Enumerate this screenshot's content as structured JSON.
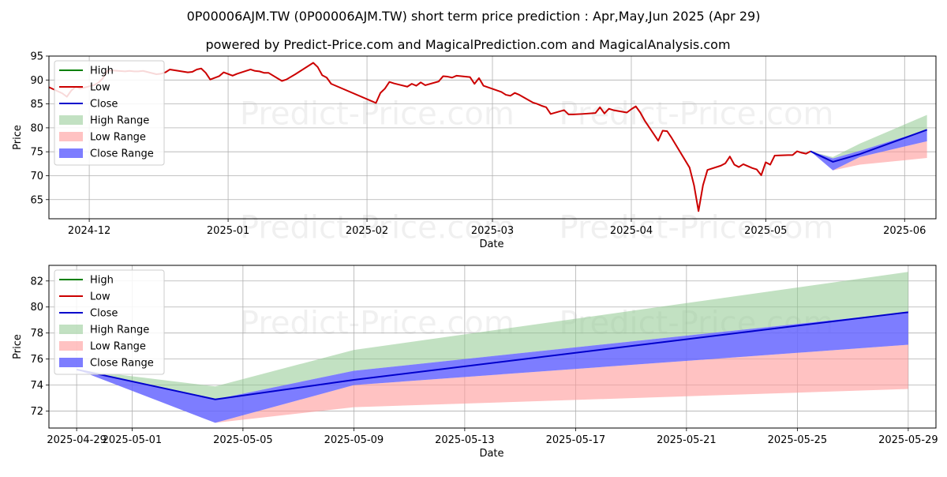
{
  "title": "0P00006AJM.TW (0P00006AJM.TW) short term price prediction : Apr,May,Jun 2025 (Apr 29)",
  "subtitle": "powered by Predict-Price.com and MagicalPrediction.com and MagicalAnalysis.com",
  "watermark": "Predict-Price.com",
  "colors": {
    "high": "#008000",
    "low": "#cc0000",
    "close": "#0000cc",
    "high_range": "#8fc98f",
    "low_range": "#ff9999",
    "close_range": "#6666ff"
  },
  "chart_data": [
    {
      "type": "line",
      "xlabel": "Date",
      "ylabel": "Price",
      "ylim": [
        61,
        95
      ],
      "yticks": [
        65,
        70,
        75,
        80,
        85,
        90,
        95
      ],
      "xlim": [
        "2024-11-22",
        "2025-06-08"
      ],
      "xticks": [
        "2024-12-01",
        "2025-01-01",
        "2025-02-01",
        "2025-03-01",
        "2025-04-01",
        "2025-05-01",
        "2025-06-01"
      ],
      "xtick_labels": [
        "2024-12",
        "2025-01",
        "2025-02",
        "2025-03",
        "2025-04",
        "2025-05",
        "2025-06"
      ],
      "grid": true,
      "legend_position": "top-left",
      "legend": [
        "High",
        "Low",
        "Close",
        "High Range",
        "Low Range",
        "Close Range"
      ],
      "history": [
        [
          "2024-11-22",
          88.5
        ],
        [
          "2024-11-25",
          87.2
        ],
        [
          "2024-11-26",
          86.5
        ],
        [
          "2024-11-27",
          87.8
        ],
        [
          "2024-11-28",
          88.6
        ],
        [
          "2024-11-29",
          88.2
        ],
        [
          "2024-12-02",
          88.9
        ],
        [
          "2024-12-03",
          89.4
        ],
        [
          "2024-12-04",
          90.3
        ],
        [
          "2024-12-05",
          91.9
        ],
        [
          "2024-12-06",
          92.0
        ],
        [
          "2024-12-09",
          91.8
        ],
        [
          "2024-12-10",
          91.9
        ],
        [
          "2024-12-11",
          91.8
        ],
        [
          "2024-12-12",
          91.8
        ],
        [
          "2024-12-13",
          91.9
        ],
        [
          "2024-12-16",
          91.2
        ],
        [
          "2024-12-17",
          91.3
        ],
        [
          "2024-12-18",
          91.6
        ],
        [
          "2024-12-19",
          92.2
        ],
        [
          "2024-12-23",
          91.6
        ],
        [
          "2024-12-24",
          91.7
        ],
        [
          "2024-12-25",
          92.2
        ],
        [
          "2024-12-26",
          92.4
        ],
        [
          "2024-12-27",
          91.5
        ],
        [
          "2024-12-28",
          90.1
        ],
        [
          "2024-12-30",
          90.8
        ],
        [
          "2024-12-31",
          91.6
        ],
        [
          "2025-01-02",
          90.9
        ],
        [
          "2025-01-03",
          91.3
        ],
        [
          "2025-01-06",
          92.2
        ],
        [
          "2025-01-07",
          91.9
        ],
        [
          "2025-01-08",
          91.8
        ],
        [
          "2025-01-09",
          91.5
        ],
        [
          "2025-01-10",
          91.5
        ],
        [
          "2025-01-13",
          89.8
        ],
        [
          "2025-01-14",
          90.1
        ],
        [
          "2025-01-16",
          91.2
        ],
        [
          "2025-01-17",
          91.8
        ],
        [
          "2025-01-20",
          93.6
        ],
        [
          "2025-01-21",
          92.7
        ],
        [
          "2025-01-22",
          91.0
        ],
        [
          "2025-01-23",
          90.5
        ],
        [
          "2025-01-24",
          89.2
        ],
        [
          "2025-02-03",
          85.2
        ],
        [
          "2025-02-04",
          87.3
        ],
        [
          "2025-02-05",
          88.2
        ],
        [
          "2025-02-06",
          89.6
        ],
        [
          "2025-02-07",
          89.3
        ],
        [
          "2025-02-10",
          88.6
        ],
        [
          "2025-02-11",
          89.2
        ],
        [
          "2025-02-12",
          88.8
        ],
        [
          "2025-02-13",
          89.5
        ],
        [
          "2025-02-14",
          88.9
        ],
        [
          "2025-02-17",
          89.7
        ],
        [
          "2025-02-18",
          90.8
        ],
        [
          "2025-02-19",
          90.7
        ],
        [
          "2025-02-20",
          90.5
        ],
        [
          "2025-02-21",
          90.9
        ],
        [
          "2025-02-24",
          90.6
        ],
        [
          "2025-02-25",
          89.2
        ],
        [
          "2025-02-26",
          90.4
        ],
        [
          "2025-02-27",
          88.8
        ],
        [
          "2025-03-03",
          87.5
        ],
        [
          "2025-03-04",
          86.9
        ],
        [
          "2025-03-05",
          86.7
        ],
        [
          "2025-03-06",
          87.3
        ],
        [
          "2025-03-07",
          86.9
        ],
        [
          "2025-03-10",
          85.3
        ],
        [
          "2025-03-11",
          85.0
        ],
        [
          "2025-03-12",
          84.6
        ],
        [
          "2025-03-13",
          84.3
        ],
        [
          "2025-03-14",
          82.9
        ],
        [
          "2025-03-17",
          83.7
        ],
        [
          "2025-03-18",
          82.8
        ],
        [
          "2025-03-19",
          82.8
        ],
        [
          "2025-03-21",
          82.9
        ],
        [
          "2025-03-24",
          83.1
        ],
        [
          "2025-03-25",
          84.3
        ],
        [
          "2025-03-26",
          83.0
        ],
        [
          "2025-03-27",
          84.0
        ],
        [
          "2025-03-28",
          83.7
        ],
        [
          "2025-03-31",
          83.2
        ],
        [
          "2025-04-01",
          83.9
        ],
        [
          "2025-04-02",
          84.5
        ],
        [
          "2025-04-03",
          83.2
        ],
        [
          "2025-04-04",
          81.5
        ],
        [
          "2025-04-07",
          77.3
        ],
        [
          "2025-04-08",
          79.4
        ],
        [
          "2025-04-09",
          79.3
        ],
        [
          "2025-04-10",
          77.9
        ],
        [
          "2025-04-14",
          71.7
        ],
        [
          "2025-04-15",
          68.0
        ],
        [
          "2025-04-16",
          62.6
        ],
        [
          "2025-04-17",
          68.0
        ],
        [
          "2025-04-18",
          71.2
        ],
        [
          "2025-04-21",
          72.1
        ],
        [
          "2025-04-22",
          72.6
        ],
        [
          "2025-04-23",
          74.0
        ],
        [
          "2025-04-24",
          72.3
        ],
        [
          "2025-04-25",
          71.8
        ],
        [
          "2025-04-26",
          72.4
        ],
        [
          "2025-04-28",
          71.6
        ],
        [
          "2025-04-29",
          71.3
        ],
        [
          "2025-04-30",
          70.1
        ],
        [
          "2025-05-01",
          72.8
        ],
        [
          "2025-05-02",
          72.3
        ],
        [
          "2025-05-03",
          74.2
        ],
        [
          "2025-05-06",
          74.3
        ],
        [
          "2025-05-07",
          74.3
        ],
        [
          "2025-05-08",
          75.1
        ],
        [
          "2025-05-09",
          74.8
        ],
        [
          "2025-05-10",
          74.6
        ],
        [
          "2025-05-11",
          75.1
        ]
      ],
      "forecast_dates": [
        "2025-05-11",
        "2025-05-16",
        "2025-05-22",
        "2025-06-06"
      ],
      "forecast": {
        "close": [
          75.1,
          72.9,
          74.5,
          79.6
        ],
        "close_range_high": [
          75.1,
          73.6,
          75.2,
          79.6
        ],
        "close_range_low": [
          75.1,
          71.1,
          73.9,
          77.2
        ],
        "high_range_top": [
          75.1,
          73.9,
          76.7,
          82.7
        ],
        "low_range_bottom": [
          75.1,
          71.1,
          72.3,
          73.7
        ]
      }
    },
    {
      "type": "line",
      "xlabel": "Date",
      "ylabel": "Price",
      "ylim": [
        70.7,
        83.2
      ],
      "yticks": [
        72,
        74,
        76,
        78,
        80,
        82
      ],
      "xlim": [
        "2025-04-28",
        "2025-05-30"
      ],
      "xticks": [
        "2025-04-29",
        "2025-05-01",
        "2025-05-05",
        "2025-05-09",
        "2025-05-13",
        "2025-05-17",
        "2025-05-21",
        "2025-05-25",
        "2025-05-29"
      ],
      "xtick_labels": [
        "2025-04-29",
        "2025-05-01",
        "2025-05-05",
        "2025-05-09",
        "2025-05-13",
        "2025-05-17",
        "2025-05-21",
        "2025-05-25",
        "2025-05-29"
      ],
      "grid": true,
      "legend_position": "top-left",
      "legend": [
        "High",
        "Low",
        "Close",
        "High Range",
        "Low Range",
        "Close Range"
      ],
      "forecast_dates": [
        "2025-04-29",
        "2025-05-04",
        "2025-05-09",
        "2025-05-29"
      ],
      "forecast": {
        "close": [
          75.2,
          72.9,
          74.4,
          79.6
        ],
        "close_range_high": [
          75.2,
          72.9,
          75.1,
          79.6
        ],
        "close_range_low": [
          75.2,
          71.1,
          74.0,
          77.1
        ],
        "high_range_top": [
          75.2,
          73.9,
          76.7,
          82.7
        ],
        "low_range_bottom": [
          75.2,
          71.1,
          72.3,
          73.7
        ]
      }
    }
  ]
}
